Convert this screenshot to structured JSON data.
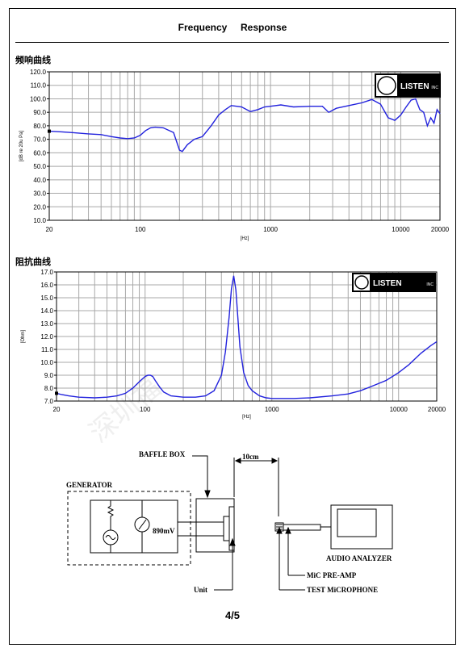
{
  "header": {
    "title": "Frequency     Response"
  },
  "sections": {
    "frequency_title": "频响曲线",
    "impedance_title": "阻抗曲线"
  },
  "logo": {
    "text": "LISTEN",
    "suffix": "INC"
  },
  "watermark": {
    "text": "深圳福"
  },
  "page_number": "4/5",
  "diagram": {
    "labels": {
      "baffle_box": "BAFFLE BOX",
      "distance": "10cm",
      "generator": "GENERATOR",
      "voltage": "890mV",
      "unit": "Unit",
      "audio_analyzer": "AUDIO ANALYZER",
      "mic_preamp": "MiC PRE-AMP",
      "test_mic": "TEST MiCROPHONE"
    }
  },
  "colors": {
    "curve": "#2222dd",
    "grid": "#a8a8a8",
    "plot_border": "#000000"
  },
  "chart_data": [
    {
      "type": "line",
      "title": "",
      "xlabel": "[Hz]",
      "ylabel": "[dB re 20u Pa]",
      "x_scale": "log",
      "xlim": [
        20,
        20000
      ],
      "ylim": [
        10,
        120
      ],
      "x_tick_labels": [
        "20",
        "100",
        "1000",
        "10000",
        "20000"
      ],
      "y_tick_labels": [
        "120.0",
        "110.0",
        "100.0",
        "90.0",
        "80.0",
        "70.0",
        "60.0",
        "50.0",
        "40.0",
        "30.0",
        "20.0",
        "10.0"
      ],
      "grid": true,
      "series": [
        {
          "x": [
            20,
            25,
            30,
            40,
            50,
            60,
            70,
            80,
            90,
            100,
            110,
            120,
            130,
            150,
            180,
            200,
            210,
            230,
            260,
            300,
            350,
            400,
            450,
            500,
            550,
            600,
            700,
            800,
            900,
            1000,
            1200,
            1500,
            2000,
            2500,
            2800,
            3200,
            4000,
            5000,
            6000,
            7000,
            8000,
            9000,
            10000,
            11000,
            12000,
            13000,
            14000,
            15000,
            16000,
            17000,
            18000,
            19000,
            20000
          ],
          "y": [
            76,
            75.5,
            75,
            74,
            73.5,
            72,
            71,
            70.5,
            71,
            73,
            76.5,
            78.5,
            79,
            78.5,
            75,
            62,
            61,
            66,
            70,
            72,
            80,
            88,
            92,
            95,
            94.5,
            94,
            90.5,
            92,
            94,
            94.5,
            95.5,
            94,
            94.5,
            94.5,
            90,
            93,
            95,
            97,
            99.5,
            96,
            86,
            84,
            88,
            94,
            99,
            100,
            92,
            90,
            80,
            86,
            82,
            92,
            89
          ]
        }
      ]
    },
    {
      "type": "line",
      "title": "",
      "xlabel": "[Hz]",
      "ylabel": "[Ohm]",
      "x_scale": "log",
      "xlim": [
        20,
        20000
      ],
      "ylim": [
        7,
        17
      ],
      "x_tick_labels": [
        "20",
        "100",
        "1000",
        "10000",
        "20000"
      ],
      "y_tick_labels": [
        "17.0",
        "16.0",
        "15.0",
        "14.0",
        "13.0",
        "12.0",
        "11.0",
        "10.0",
        "9.0",
        "8.0",
        "7.0"
      ],
      "grid": true,
      "series": [
        {
          "x": [
            20,
            22,
            25,
            30,
            40,
            50,
            60,
            70,
            80,
            90,
            100,
            105,
            110,
            115,
            120,
            130,
            140,
            160,
            200,
            250,
            300,
            350,
            400,
            430,
            460,
            480,
            500,
            520,
            540,
            560,
            600,
            650,
            700,
            800,
            900,
            1000,
            1200,
            1500,
            2000,
            3000,
            4000,
            5000,
            6000,
            8000,
            10000,
            12000,
            15000,
            18000,
            20000
          ],
          "y": [
            7.6,
            7.5,
            7.4,
            7.3,
            7.25,
            7.3,
            7.4,
            7.6,
            8.0,
            8.5,
            8.9,
            9.0,
            9.0,
            8.9,
            8.6,
            8.1,
            7.7,
            7.4,
            7.3,
            7.3,
            7.4,
            7.8,
            9.0,
            10.8,
            13.5,
            15.7,
            16.7,
            15.6,
            13.4,
            11.2,
            9.2,
            8.2,
            7.8,
            7.4,
            7.25,
            7.2,
            7.2,
            7.2,
            7.25,
            7.4,
            7.55,
            7.8,
            8.1,
            8.6,
            9.2,
            9.8,
            10.7,
            11.3,
            11.6
          ]
        }
      ]
    }
  ]
}
